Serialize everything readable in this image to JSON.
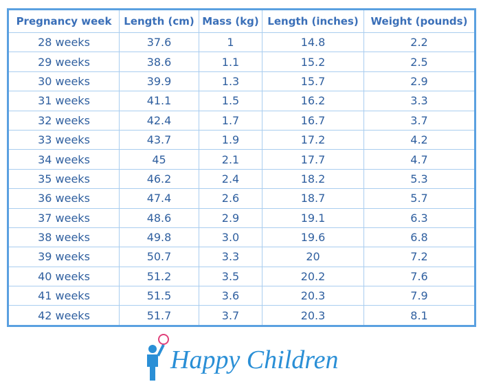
{
  "table": {
    "header": [
      "Pregnancy week",
      "Length (cm)",
      "Mass (kg)",
      "Length (inches)",
      "Weight (pounds)"
    ],
    "rows": [
      [
        "28 weeks",
        "37.6",
        "1",
        "14.8",
        "2.2"
      ],
      [
        "29 weeks",
        "38.6",
        "1.1",
        "15.2",
        "2.5"
      ],
      [
        "30 weeks",
        "39.9",
        "1.3",
        "15.7",
        "2.9"
      ],
      [
        "31 weeks",
        "41.1",
        "1.5",
        "16.2",
        "3.3"
      ],
      [
        "32 weeks",
        "42.4",
        "1.7",
        "16.7",
        "3.7"
      ],
      [
        "33 weeks",
        "43.7",
        "1.9",
        "17.2",
        "4.2"
      ],
      [
        "34 weeks",
        "45",
        "2.1",
        "17.7",
        "4.7"
      ],
      [
        "35 weeks",
        "46.2",
        "2.4",
        "18.2",
        "5.3"
      ],
      [
        "36 weeks",
        "47.4",
        "2.6",
        "18.7",
        "5.7"
      ],
      [
        "37 weeks",
        "48.6",
        "2.9",
        "19.1",
        "6.3"
      ],
      [
        "38 weeks",
        "49.8",
        "3.0",
        "19.6",
        "6.8"
      ],
      [
        "39 weeks",
        "50.7",
        "3.3",
        "20",
        "7.2"
      ],
      [
        "40 weeks",
        "51.2",
        "3.5",
        "20.2",
        "7.6"
      ],
      [
        "41 weeks",
        "51.5",
        "3.6",
        "20.3",
        "7.9"
      ],
      [
        "42 weeks",
        "51.7",
        "3.7",
        "20.3",
        "8.1"
      ]
    ]
  },
  "logo": {
    "text": "Happy Children"
  }
}
